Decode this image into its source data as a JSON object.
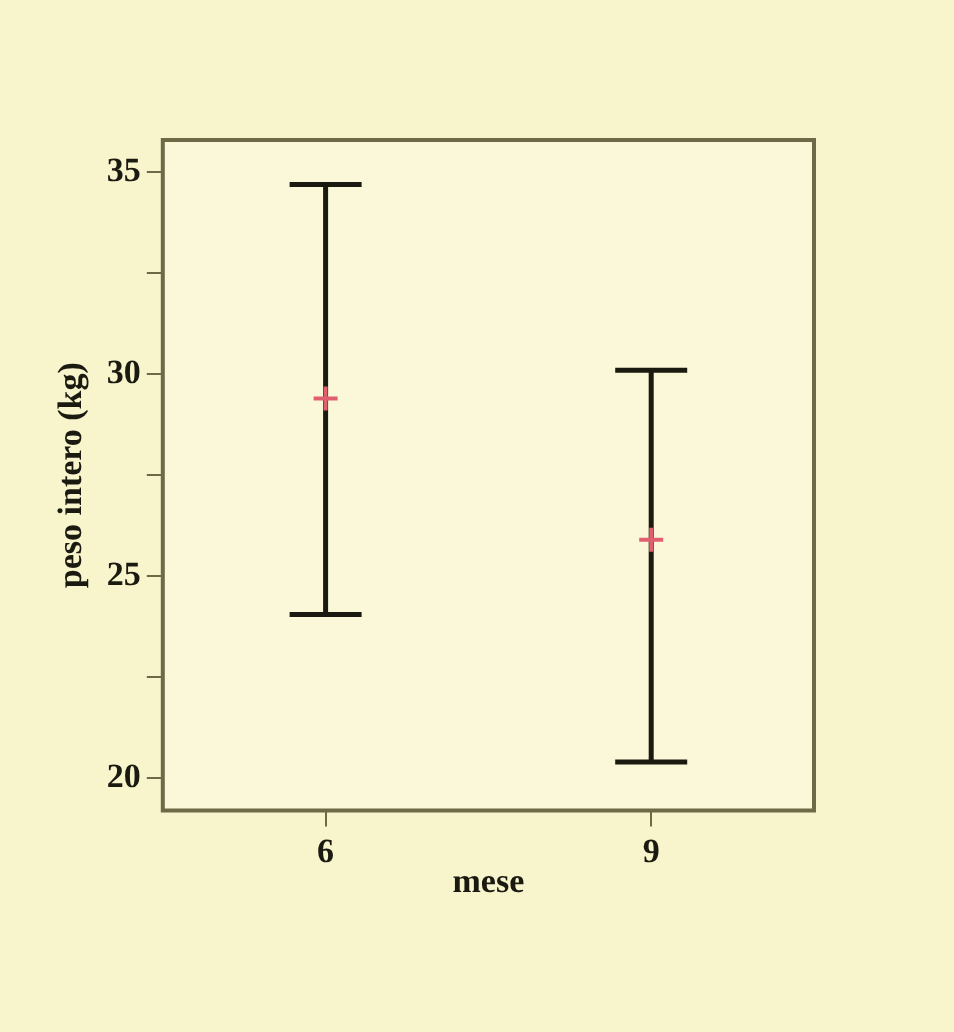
{
  "chart_data": {
    "type": "scatter",
    "xlabel": "mese",
    "ylabel": "peso intero (kg)",
    "categories": [
      "6",
      "9"
    ],
    "series": [
      {
        "color": "#e06070",
        "values": [
          29.4,
          25.9
        ],
        "errors": [
          [
            24.05,
            34.7
          ],
          [
            20.4,
            30.1
          ]
        ]
      }
    ],
    "ylim": [
      19.2,
      35.8
    ],
    "yticks": [
      20,
      {
        "value": 22.5,
        "label": null
      },
      25,
      {
        "value": 27.5,
        "label": null
      },
      30,
      {
        "value": 32.5,
        "label": null
      },
      35
    ],
    "grid": false,
    "legend": false,
    "marker": "cross"
  }
}
